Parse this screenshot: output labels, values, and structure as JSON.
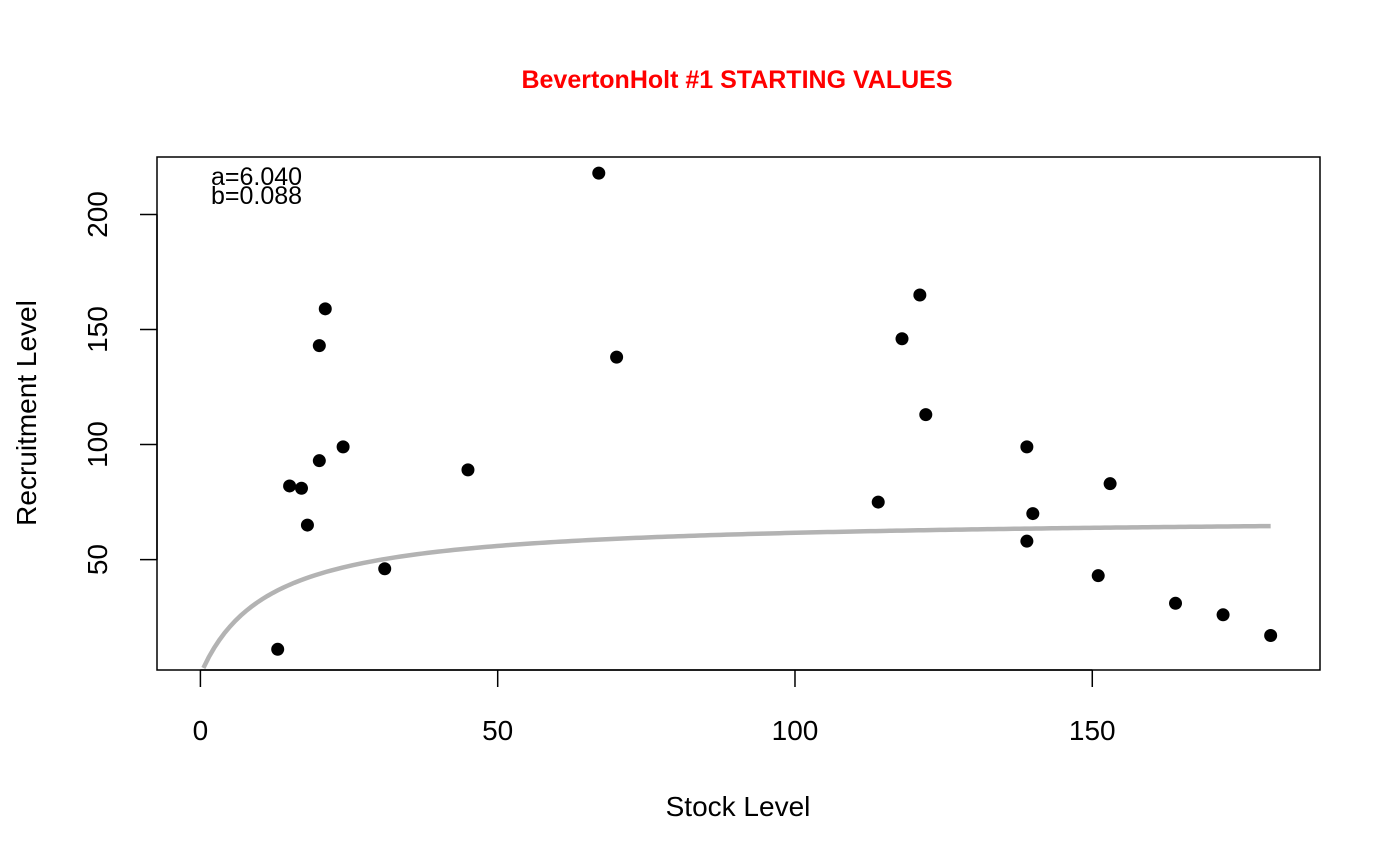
{
  "chart_data": {
    "type": "scatter",
    "title": "BevertonHolt #1 STARTING VALUES",
    "xlabel": "Stock Level",
    "ylabel": "Recruitment Level",
    "xlim": [
      -7.3,
      188.3
    ],
    "ylim": [
      2,
      225
    ],
    "x_ticks": [
      0,
      50,
      100,
      150
    ],
    "y_ticks": [
      50,
      100,
      150,
      200
    ],
    "grid": false,
    "annotations": [
      "a=6.040",
      "b=0.088"
    ],
    "colors": {
      "title": "#ff0000",
      "points": "#000000",
      "curve": "#b3b3b3"
    },
    "points": [
      {
        "x": 13,
        "y": 11
      },
      {
        "x": 15,
        "y": 82
      },
      {
        "x": 17,
        "y": 81
      },
      {
        "x": 18,
        "y": 65
      },
      {
        "x": 20,
        "y": 143
      },
      {
        "x": 20,
        "y": 93
      },
      {
        "x": 21,
        "y": 159
      },
      {
        "x": 24,
        "y": 99
      },
      {
        "x": 31,
        "y": 46
      },
      {
        "x": 45,
        "y": 89
      },
      {
        "x": 67,
        "y": 218
      },
      {
        "x": 70,
        "y": 138
      },
      {
        "x": 114,
        "y": 75
      },
      {
        "x": 118,
        "y": 146
      },
      {
        "x": 121,
        "y": 165
      },
      {
        "x": 122,
        "y": 113
      },
      {
        "x": 139,
        "y": 99
      },
      {
        "x": 139,
        "y": 58
      },
      {
        "x": 140,
        "y": 70
      },
      {
        "x": 151,
        "y": 43
      },
      {
        "x": 153,
        "y": 83
      },
      {
        "x": 164,
        "y": 31
      },
      {
        "x": 172,
        "y": 26
      },
      {
        "x": 180,
        "y": 17
      }
    ],
    "curve": {
      "model": "R = a*S/(1+b*S)",
      "a": 6.04,
      "b": 0.088,
      "x_range": [
        0.5,
        180
      ]
    }
  }
}
